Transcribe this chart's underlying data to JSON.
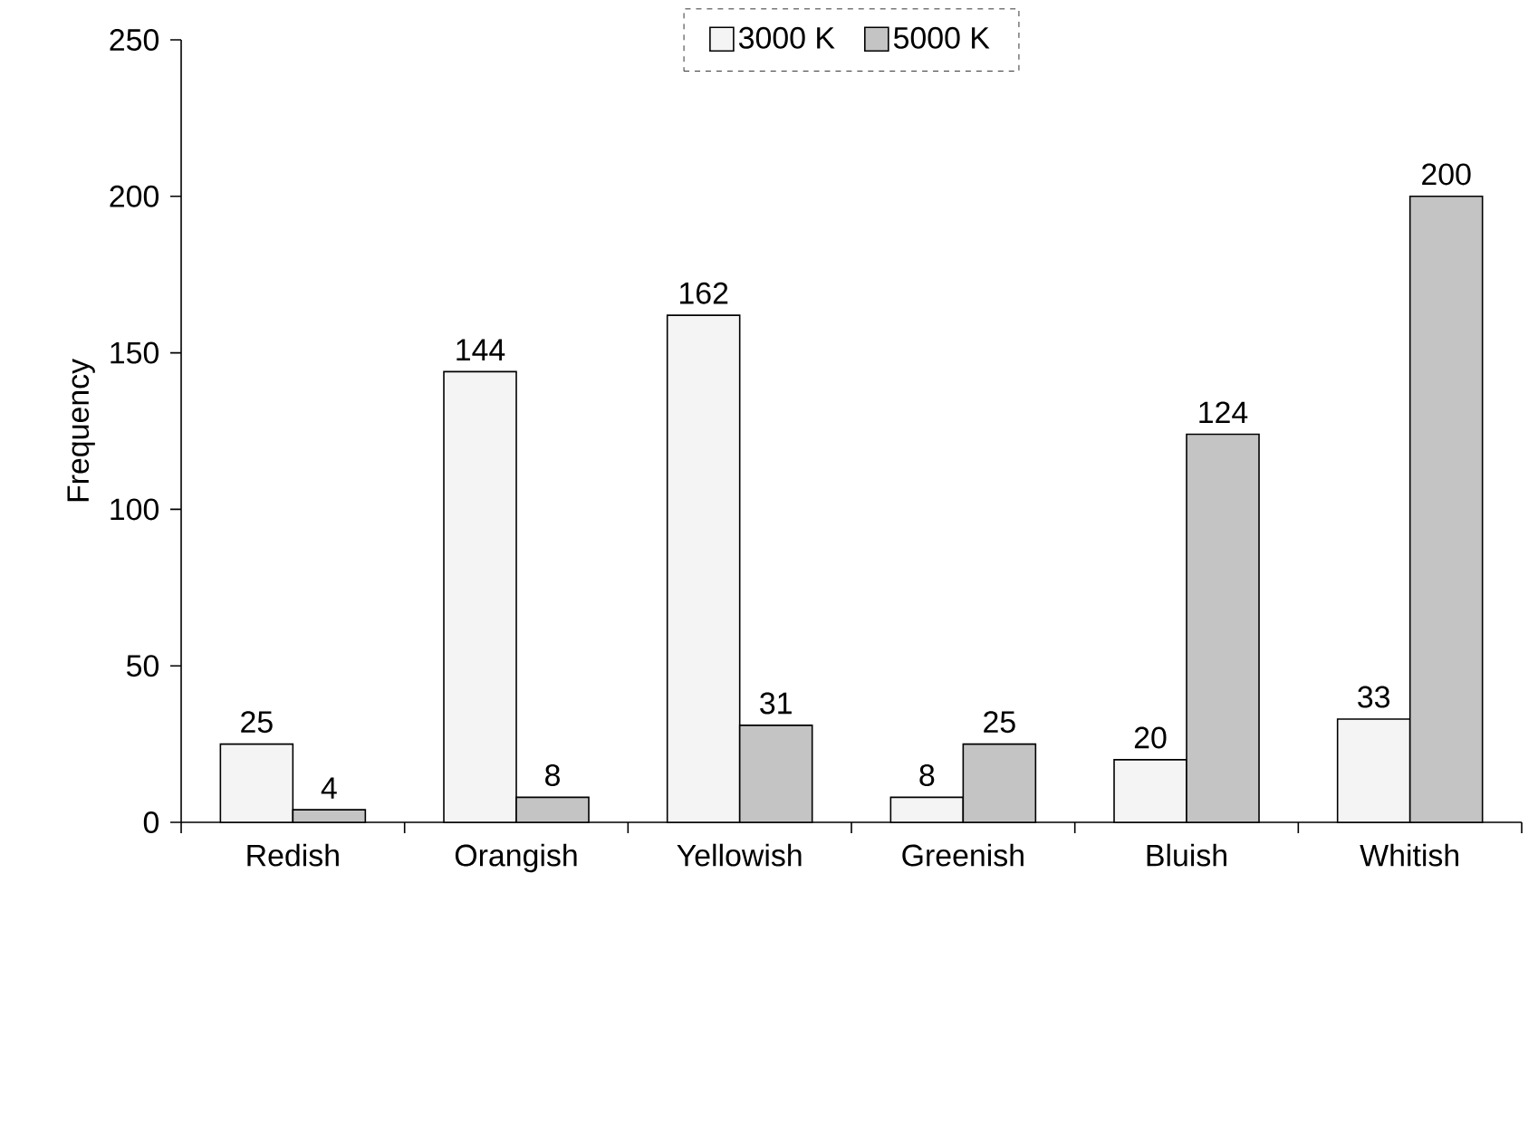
{
  "chart_data": {
    "type": "bar",
    "ylabel": "Frequency",
    "categories": [
      "Redish",
      "Orangish",
      "Yellowish",
      "Greenish",
      "Bluish",
      "Whitish"
    ],
    "series": [
      {
        "name": "3000 K",
        "color": "#f4f4f4",
        "values": [
          25,
          144,
          162,
          8,
          20,
          33
        ]
      },
      {
        "name": "5000 K",
        "color": "#c4c4c4",
        "values": [
          4,
          8,
          31,
          25,
          124,
          200
        ]
      }
    ],
    "ylim": [
      0,
      250
    ],
    "yticks": [
      0,
      50,
      100,
      150,
      200,
      250
    ],
    "data_labels": true,
    "legend": "top",
    "grid": false
  }
}
